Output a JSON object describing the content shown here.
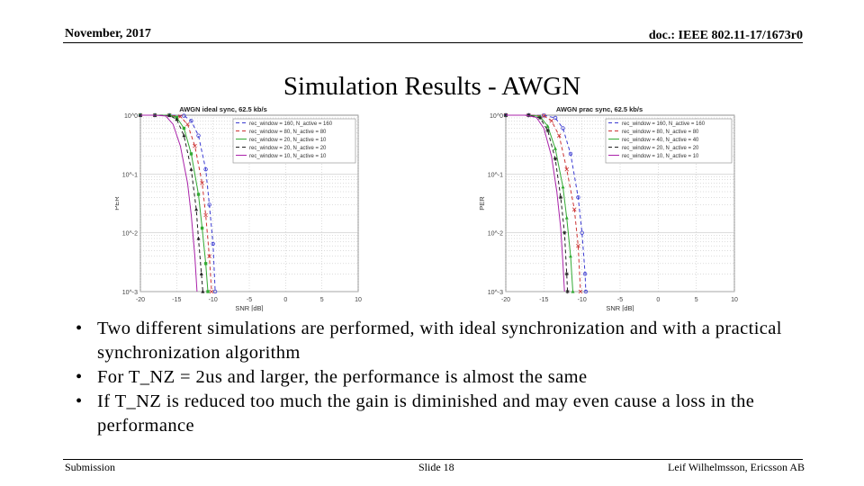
{
  "header": {
    "date": "November, 2017",
    "doc": "doc.: IEEE 802.11-17/1673r0"
  },
  "title": "Simulation Results - AWGN",
  "bullets": [
    "Two different simulations are performed, with ideal synchronization and with a practical synchronization algorithm",
    "For T_NZ = 2us and larger, the performance is almost the same",
    "If T_NZ is reduced too much the gain is diminished and may even cause a loss in the performance"
  ],
  "bullet_glyph": "•",
  "footer": {
    "left": "Submission",
    "center": "Slide 18",
    "right": "Leif Wilhelmsson, Ericsson AB"
  },
  "chart_data": [
    {
      "type": "line",
      "title": "AWGN ideal sync, 62.5 kb/s",
      "xlabel": "SNR [dB]",
      "ylabel": "PER",
      "xlim": [
        -20,
        10
      ],
      "ylim": [
        0.001,
        1
      ],
      "yscale": "log",
      "x_ticks": [
        "-20",
        "-15",
        "-10",
        "-5",
        "0",
        "5",
        "10"
      ],
      "y_ticks": [
        "10^0",
        "10^-1",
        "10^-2",
        "10^-3"
      ],
      "grid": true,
      "legend_position": "top-right",
      "series": [
        {
          "name": "rec_window = 160, N_active = 160",
          "color": "#3b3bd1",
          "dash": "4,3",
          "marker": "circle",
          "points": [
            [
              -20,
              1
            ],
            [
              -18,
              1
            ],
            [
              -16,
              1
            ],
            [
              -14,
              0.98
            ],
            [
              -13,
              0.8
            ],
            [
              -12,
              0.45
            ],
            [
              -11,
              0.12
            ],
            [
              -10.5,
              0.03
            ],
            [
              -10,
              0.0065
            ],
            [
              -9.7,
              0.001
            ]
          ]
        },
        {
          "name": "rec_window = 80, N_active = 80",
          "color": "#cc3333",
          "dash": "4,3",
          "marker": "x",
          "points": [
            [
              -20,
              1
            ],
            [
              -18,
              1
            ],
            [
              -16,
              1
            ],
            [
              -14.5,
              0.95
            ],
            [
              -13.5,
              0.7
            ],
            [
              -12.5,
              0.3
            ],
            [
              -11.5,
              0.07
            ],
            [
              -11,
              0.02
            ],
            [
              -10.5,
              0.004
            ],
            [
              -10.2,
              0.001
            ]
          ]
        },
        {
          "name": "rec_window = 20, N_active = 10",
          "color": "#33aa33",
          "dash": "",
          "marker": "square",
          "points": [
            [
              -20,
              1
            ],
            [
              -18,
              1
            ],
            [
              -16,
              1
            ],
            [
              -15,
              0.92
            ],
            [
              -14,
              0.6
            ],
            [
              -13,
              0.22
            ],
            [
              -12,
              0.045
            ],
            [
              -11.5,
              0.012
            ],
            [
              -11,
              0.003
            ],
            [
              -10.7,
              0.001
            ]
          ]
        },
        {
          "name": "rec_window = 20, N_active = 20",
          "color": "#222222",
          "dash": "4,3",
          "marker": "triangle",
          "points": [
            [
              -20,
              1
            ],
            [
              -18,
              1
            ],
            [
              -16,
              0.99
            ],
            [
              -15,
              0.85
            ],
            [
              -14,
              0.45
            ],
            [
              -13,
              0.12
            ],
            [
              -12.3,
              0.025
            ],
            [
              -12,
              0.008
            ],
            [
              -11.6,
              0.002
            ],
            [
              -11.4,
              0.001
            ]
          ]
        },
        {
          "name": "rec_window = 10, N_active = 10",
          "color": "#aa22aa",
          "dash": "",
          "marker": "none",
          "points": [
            [
              -20,
              1
            ],
            [
              -18,
              1
            ],
            [
              -16.5,
              0.97
            ],
            [
              -15.5,
              0.7
            ],
            [
              -14.5,
              0.3
            ],
            [
              -13.5,
              0.07
            ],
            [
              -13,
              0.02
            ],
            [
              -12.5,
              0.004
            ],
            [
              -12.2,
              0.001
            ]
          ]
        }
      ]
    },
    {
      "type": "line",
      "title": "AWGN prac sync, 62.5 kb/s",
      "xlabel": "SNR [dB]",
      "ylabel": "PER",
      "xlim": [
        -20,
        10
      ],
      "ylim": [
        0.001,
        1
      ],
      "yscale": "log",
      "x_ticks": [
        "-20",
        "-15",
        "-10",
        "-5",
        "0",
        "5",
        "10"
      ],
      "y_ticks": [
        "10^0",
        "10^-1",
        "10^-2",
        "10^-3"
      ],
      "grid": true,
      "legend_position": "top-right",
      "series": [
        {
          "name": "rec_window = 160, N_active = 160",
          "color": "#3b3bd1",
          "dash": "4,3",
          "marker": "circle",
          "points": [
            [
              -20,
              1
            ],
            [
              -17,
              1
            ],
            [
              -15,
              0.99
            ],
            [
              -13.5,
              0.9
            ],
            [
              -12.5,
              0.6
            ],
            [
              -11.5,
              0.22
            ],
            [
              -10.5,
              0.04
            ],
            [
              -10,
              0.01
            ],
            [
              -9.6,
              0.002
            ],
            [
              -9.5,
              0.001
            ]
          ]
        },
        {
          "name": "rec_window = 80, N_active = 80",
          "color": "#cc3333",
          "dash": "4,3",
          "marker": "x",
          "points": [
            [
              -20,
              1
            ],
            [
              -17,
              1
            ],
            [
              -15,
              0.98
            ],
            [
              -14,
              0.8
            ],
            [
              -13,
              0.45
            ],
            [
              -12,
              0.12
            ],
            [
              -11,
              0.025
            ],
            [
              -10.5,
              0.006
            ],
            [
              -10.2,
              0.001
            ]
          ]
        },
        {
          "name": "rec_window = 40, N_active = 40",
          "color": "#33aa33",
          "dash": "",
          "marker": "triangle",
          "points": [
            [
              -20,
              1
            ],
            [
              -17,
              1
            ],
            [
              -15.5,
              0.95
            ],
            [
              -14.5,
              0.65
            ],
            [
              -13.5,
              0.27
            ],
            [
              -12.5,
              0.06
            ],
            [
              -12,
              0.018
            ],
            [
              -11.5,
              0.004
            ],
            [
              -11.2,
              0.001
            ]
          ]
        },
        {
          "name": "rec_window = 20, N_active = 20",
          "color": "#222222",
          "dash": "4,3",
          "marker": "star",
          "points": [
            [
              -20,
              1
            ],
            [
              -17,
              1
            ],
            [
              -15.5,
              0.9
            ],
            [
              -14.5,
              0.55
            ],
            [
              -13.5,
              0.18
            ],
            [
              -12.8,
              0.04
            ],
            [
              -12.3,
              0.01
            ],
            [
              -12,
              0.002
            ],
            [
              -11.9,
              0.001
            ]
          ]
        },
        {
          "name": "rec_window = 10, N_active = 10",
          "color": "#aa22aa",
          "dash": "",
          "marker": "none",
          "points": [
            [
              -20,
              1
            ],
            [
              -17.5,
              1
            ],
            [
              -16,
              0.92
            ],
            [
              -15,
              0.6
            ],
            [
              -14,
              0.2
            ],
            [
              -13.3,
              0.05
            ],
            [
              -12.8,
              0.012
            ],
            [
              -12.5,
              0.003
            ],
            [
              -12.3,
              0.001
            ]
          ]
        }
      ]
    }
  ]
}
